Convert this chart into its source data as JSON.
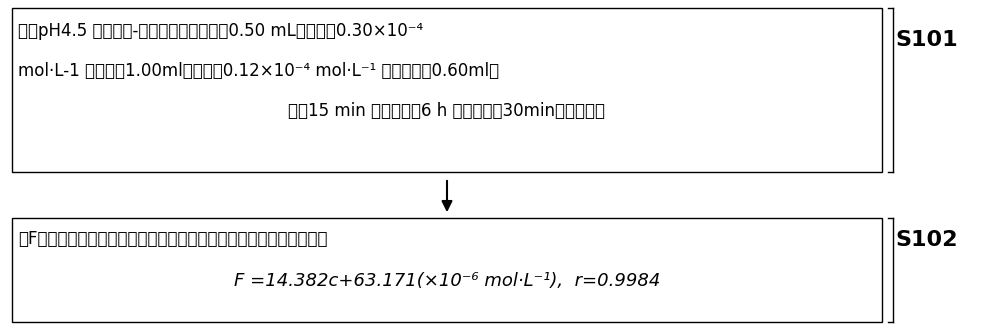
{
  "box1_line1": "加入pH4.5 的柠檬酸-磷酸氢二钓缓冲溶涵0.50 mL，浓度为0.30×10⁻⁴",
  "box1_line2": "mol·L-1 邻二氮菲1.00ml；浓度为0.12×10⁻⁴ mol·L⁻¹ 胭脂红溶涵0.60ml；",
  "box1_line3": "反应15 min 进行，稳到6 h 以上，反应30min后进行测定",
  "box2_line1": "以F为纵坐标，镎浓度为横坐标绘制标准曲线，标准曲线的回归方程为",
  "box2_line2": "F =14.382c+63.171(×10⁻⁶ mol·L⁻¹),  r=0.9984",
  "label1": "S101",
  "label2": "S102",
  "bg_color": "#ffffff",
  "box_edge_color": "#000000",
  "text_color": "#000000",
  "arrow_color": "#000000"
}
